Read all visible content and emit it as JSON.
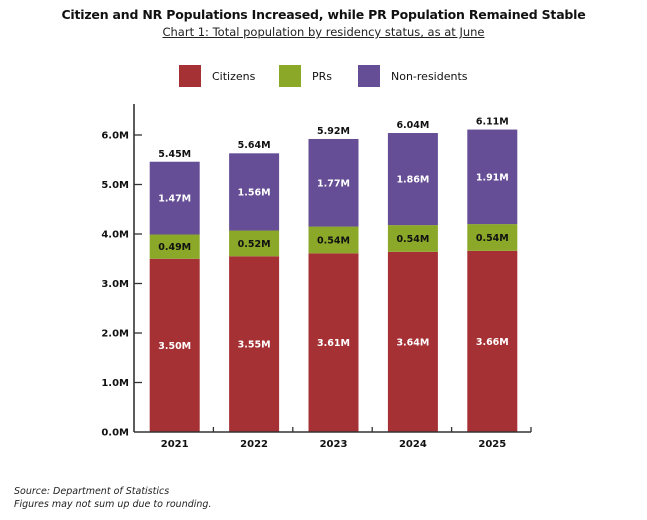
{
  "chart_data": {
    "type": "bar",
    "stacked": true,
    "title": "Citizen and NR Populations Increased, while PR Population Remained Stable",
    "subtitle": "Chart 1: Total population by residency status, as at June",
    "xlabel": "",
    "ylabel": "",
    "categories": [
      "2021",
      "2022",
      "2023",
      "2024",
      "2025"
    ],
    "series": [
      {
        "name": "Citizens",
        "color": "#A63134",
        "label_color": "#ffffff",
        "values": [
          3.5,
          3.55,
          3.61,
          3.64,
          3.66
        ],
        "labels": [
          "3.50M",
          "3.55M",
          "3.61M",
          "3.64M",
          "3.66M"
        ]
      },
      {
        "name": "PRs",
        "color": "#8BA829",
        "label_color": "#111111",
        "values": [
          0.49,
          0.52,
          0.54,
          0.54,
          0.54
        ],
        "labels": [
          "0.49M",
          "0.52M",
          "0.54M",
          "0.54M",
          "0.54M"
        ]
      },
      {
        "name": "Non-residents",
        "color": "#654E96",
        "label_color": "#ffffff",
        "values": [
          1.47,
          1.56,
          1.77,
          1.86,
          1.91
        ],
        "labels": [
          "1.47M",
          "1.56M",
          "1.77M",
          "1.86M",
          "1.91M"
        ]
      }
    ],
    "totals": [
      5.45,
      5.64,
      5.92,
      6.04,
      6.11
    ],
    "total_labels": [
      "5.45M",
      "5.64M",
      "5.92M",
      "6.04M",
      "6.11M"
    ],
    "ylim": [
      0,
      6.6
    ],
    "yticks": [
      0,
      1,
      2,
      3,
      4,
      5,
      6
    ],
    "ytick_labels": [
      "0.0M",
      "1.0M",
      "2.0M",
      "3.0M",
      "4.0M",
      "5.0M",
      "6.0M"
    ],
    "grid": false,
    "legend": {
      "position": "top-center",
      "entries": [
        "Citizens",
        "PRs",
        "Non-residents"
      ]
    },
    "unit": "millions"
  },
  "footer": {
    "source": "Source: Department of Statistics",
    "note": "Figures may not sum up due to rounding."
  }
}
